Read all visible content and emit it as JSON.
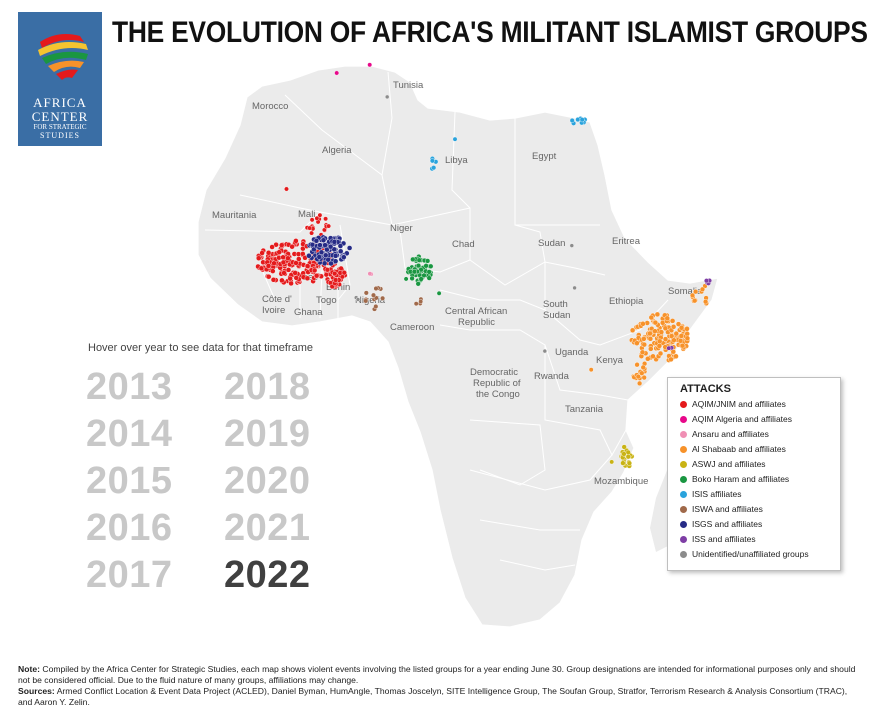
{
  "title": "THE EVOLUTION OF AFRICA'S MILITANT ISLAMIST GROUPS",
  "logo": {
    "line1": "AFRICA",
    "line2": "CENTER",
    "line3": "FOR STRATEGIC",
    "line4": "STUDIES"
  },
  "hover_instruction": "Hover over year to see data for that timeframe",
  "years": [
    "2013",
    "2014",
    "2015",
    "2016",
    "2017",
    "2018",
    "2019",
    "2020",
    "2021",
    "2022"
  ],
  "selected_year": "2022",
  "countries": [
    "Tunisia",
    "Morocco",
    "Algeria",
    "Libya",
    "Egypt",
    "Mauritania",
    "Mali",
    "Niger",
    "Chad",
    "Sudan",
    "Eritrea",
    "Faso",
    "Benin",
    "Nigeria",
    "Togo",
    "Côte d'",
    "Ivoire",
    "Ghana",
    "Cameroon",
    "Central African",
    "Republic",
    "South",
    "Sudan",
    "Ethiopia",
    "Somalia",
    "Uganda",
    "Kenya",
    "Democratic",
    "Republic of",
    "the Congo",
    "Rwanda",
    "Tanzania",
    "Mozambique"
  ],
  "legend": {
    "title": "ATTACKS",
    "items": [
      {
        "label": "AQIM/JNIM and affiliates",
        "color": "#e41a1c"
      },
      {
        "label": "AQIM Algeria and affiliates",
        "color": "#e7088a"
      },
      {
        "label": "Ansaru and affiliates",
        "color": "#f08fb4"
      },
      {
        "label": "Al Shabaab and affiliates",
        "color": "#f7922a"
      },
      {
        "label": "ASWJ and affiliates",
        "color": "#c9b314"
      },
      {
        "label": "Boko Haram and affiliates",
        "color": "#1a9641"
      },
      {
        "label": "ISIS affiliates",
        "color": "#2aa3dc"
      },
      {
        "label": "ISWA and affiliates",
        "color": "#a0694a"
      },
      {
        "label": "ISGS and affiliates",
        "color": "#262b86"
      },
      {
        "label": "ISS and affiliates",
        "color": "#7e3ea5"
      },
      {
        "label": "Unidentified/unaffiliated groups",
        "color": "#8c8c8c"
      }
    ]
  },
  "notes": {
    "note_label": "Note:",
    "note_text": " Compiled by the Africa Center for Strategic Studies, each map shows violent events involving the listed groups for a year ending June 30. Group designations are intended for informational purposes only and should not be considered official. Due to the fluid nature of many groups, affiliations may change.",
    "sources_label": "Sources:",
    "sources_text": " Armed Conflict Location & Event Data Project (ACLED), Daniel Byman, HumAngle, Thomas Joscelyn, SITE Intelligence Group, The Soufan Group, Stratfor, Terrorism Research & Analysis Consortium (TRAC), and Aaron Y. Zelin."
  }
}
